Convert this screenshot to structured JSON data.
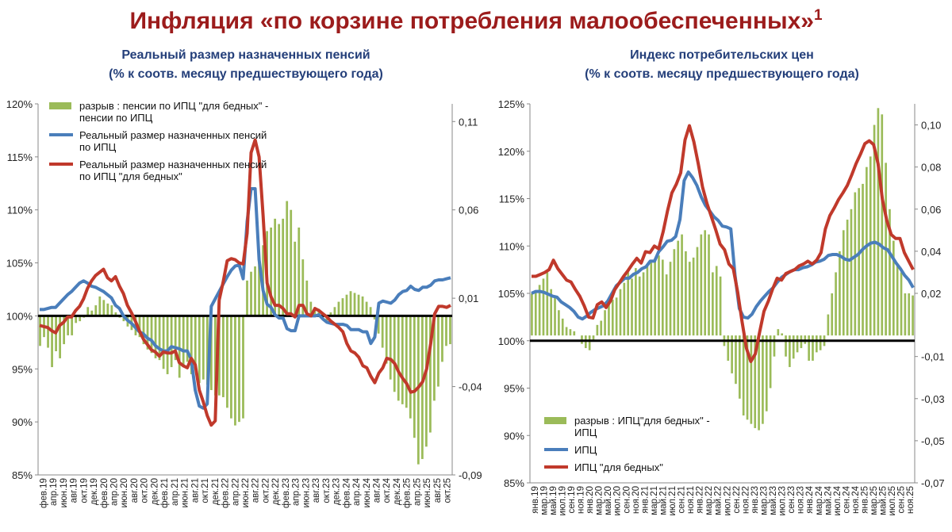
{
  "page": {
    "title": "Инфляция «по корзине потребления малообеспеченных»",
    "title_sup": "1"
  },
  "colors": {
    "gap": "#9bbb59",
    "cpi": "#4a7ebb",
    "poor": "#c0392b",
    "title": "#9c1c1c",
    "subtitle": "#243f7a"
  },
  "chart_data": [
    {
      "type": "bar+line",
      "title": "Реальный размер назначенных пенсий",
      "subtitle": "(% к соотв. месяцу предшествующего года)",
      "y_left_ticks": [
        "85%",
        "90%",
        "95%",
        "100%",
        "105%",
        "110%",
        "115%",
        "120%"
      ],
      "y_left_range": [
        85,
        120
      ],
      "y_right_ticks": [
        "-0,09",
        "-0,04",
        "0,01",
        "0,06",
        "0,11"
      ],
      "y_right_range": [
        -0.09,
        0.12
      ],
      "baseline": 100,
      "x_labels": [
        "фев.19",
        "апр.19",
        "июн.19",
        "авг.19",
        "окт.19",
        "дек.19",
        "фев.20",
        "апр.20",
        "июн.20",
        "авг.20",
        "окт.20",
        "дек.20",
        "фев.21",
        "апр.21",
        "июн.21",
        "авг.21",
        "окт.21",
        "дек.21",
        "фев.22",
        "апр.22",
        "июн.22",
        "авг.22",
        "окт.22",
        "дек.22",
        "фев.23",
        "апр.23",
        "июн.23",
        "авг.23",
        "окт.23",
        "дек.23",
        "фев.24",
        "апр.24",
        "июн.24",
        "авг.24",
        "окт.24",
        "дек.24",
        "фев.25",
        "апр.25",
        "июн.25",
        "авг.25",
        "окт.25"
      ],
      "legend": [
        {
          "name": "разрыв : пенсии по ИПЦ \"для бедных\" -",
          "name2": "пенсии по ИПЦ"
        },
        {
          "name": "Реальный размер назначенных пенсий",
          "name2": "по ИПЦ"
        },
        {
          "name": "Реальный размер назначенных пенсий",
          "name2": "по ИПЦ \"для бедных\""
        }
      ],
      "bars": [
        -0.017,
        -0.012,
        -0.018,
        -0.029,
        -0.02,
        -0.024,
        -0.016,
        -0.011,
        -0.011,
        -0.004,
        -0.003,
        -0.001,
        0.005,
        0.003,
        0.006,
        0.011,
        0.009,
        0.007,
        0.006,
        0.002,
        -0.001,
        -0.003,
        -0.006,
        -0.008,
        -0.011,
        -0.012,
        -0.016,
        -0.019,
        -0.021,
        -0.024,
        -0.025,
        -0.03,
        -0.033,
        -0.029,
        -0.025,
        -0.035,
        -0.028,
        -0.026,
        -0.033,
        -0.03,
        -0.038,
        -0.036,
        -0.039,
        -0.042,
        -0.045,
        -0.045,
        -0.046,
        -0.052,
        -0.058,
        -0.062,
        -0.06,
        -0.058,
        0.02,
        0.025,
        0.028,
        0.035,
        0.04,
        0.048,
        0.05,
        0.055,
        0.052,
        0.055,
        0.065,
        0.06,
        0.042,
        0.05,
        0.032,
        0.02,
        0.008,
        0.005,
        0.004,
        -0.001,
        -0.003,
        0.002,
        0.005,
        0.008,
        0.01,
        0.012,
        0.014,
        0.013,
        0.012,
        0.011,
        0.008,
        0.005,
        -0.002,
        -0.01,
        -0.018,
        -0.027,
        -0.036,
        -0.043,
        -0.048,
        -0.05,
        -0.052,
        -0.058,
        -0.069,
        -0.084,
        -0.081,
        -0.074,
        -0.066,
        -0.048,
        -0.04,
        -0.026,
        -0.017,
        -0.016
      ],
      "series_cpi": [
        100.6,
        100.6,
        100.7,
        100.8,
        100.8,
        101.2,
        101.6,
        102.0,
        102.3,
        102.7,
        103.1,
        103.3,
        103.1,
        102.8,
        102.7,
        102.5,
        102.3,
        102.0,
        101.7,
        101.0,
        100.7,
        100.0,
        99.6,
        99.3,
        98.9,
        98.5,
        98.3,
        97.9,
        97.7,
        97.2,
        96.9,
        96.7,
        96.7,
        97.1,
        97.0,
        96.9,
        96.7,
        96.7,
        95.9,
        93.0,
        91.5,
        91.3,
        91.7,
        100.9,
        101.6,
        102.3,
        103.0,
        103.7,
        104.3,
        104.7,
        104.8,
        103.5,
        108.9,
        112.0,
        112.0,
        105.3,
        102.4,
        101.1,
        100.8,
        100.1,
        99.8,
        99.8,
        98.8,
        98.6,
        98.6,
        100.0,
        100.0,
        100.0,
        100.0,
        100.0,
        100.1,
        99.7,
        99.4,
        99.3,
        99.2,
        99.2,
        99.2,
        99.1,
        98.7,
        98.7,
        98.7,
        98.5,
        98.5,
        97.4,
        98.0,
        101.2,
        101.4,
        101.3,
        101.2,
        101.5,
        102.0,
        102.3,
        102.4,
        102.8,
        102.5,
        102.4,
        102.7,
        102.7,
        102.9,
        103.3,
        103.4,
        103.4,
        103.5,
        103.6
      ],
      "series_poor": [
        99.1,
        99.0,
        98.9,
        98.6,
        98.4,
        99.1,
        99.4,
        99.9,
        99.9,
        100.5,
        100.9,
        101.6,
        102.6,
        103.3,
        103.8,
        104.1,
        104.4,
        103.6,
        103.3,
        103.7,
        102.8,
        102.1,
        101.0,
        100.3,
        99.5,
        98.6,
        97.8,
        97.3,
        96.8,
        96.6,
        96.2,
        96.6,
        96.5,
        96.5,
        96.7,
        95.6,
        95.3,
        95.1,
        96.0,
        95.4,
        93.0,
        91.9,
        90.6,
        89.7,
        90.1,
        101.5,
        103.2,
        105.2,
        105.4,
        105.3,
        105.0,
        104.9,
        107.8,
        115.4,
        116.6,
        115.0,
        109.5,
        103.1,
        101.8,
        101.0,
        101.0,
        100.7,
        100.2,
        100.2,
        99.9,
        101.0,
        101.0,
        100.2,
        100.0,
        100.7,
        100.5,
        100.2,
        99.9,
        99.5,
        99.2,
        98.9,
        98.5,
        97.4,
        96.7,
        96.5,
        96.1,
        95.3,
        95.1,
        94.3,
        93.7,
        94.6,
        95.1,
        96.0,
        95.9,
        95.5,
        94.7,
        94.1,
        93.6,
        92.8,
        92.9,
        93.3,
        93.8,
        95.0,
        97.4,
        100.2,
        100.9,
        100.9,
        100.8,
        101.0
      ]
    },
    {
      "type": "bar+line",
      "title": "Индекс потребительских цен",
      "subtitle": "(% к соотв. месяцу предшествующего года)",
      "y_left_ticks": [
        "85%",
        "90%",
        "95%",
        "100%",
        "105%",
        "110%",
        "115%",
        "120%",
        "125%"
      ],
      "y_left_range": [
        85,
        125
      ],
      "y_right_ticks": [
        "-0,07",
        "-0,05",
        "-0,03",
        "-0,01",
        "0,02",
        "0,04",
        "0,06",
        "0,08",
        "0,10"
      ],
      "y_right_range": [
        -0.07,
        0.11
      ],
      "baseline": 100,
      "x_labels": [
        "янв.19",
        "мар.19",
        "май.19",
        "июл.19",
        "сен.19",
        "ноя.19",
        "янв.20",
        "мар.20",
        "май.20",
        "июл.20",
        "сен.20",
        "ноя.20",
        "янв.21",
        "мар.21",
        "май.21",
        "июл.21",
        "сен.21",
        "ноя.21",
        "янв.22",
        "мар.22",
        "май.22",
        "июл.22",
        "сен.22",
        "ноя.22",
        "янв.23",
        "мар.23",
        "май.23",
        "июл.23",
        "сен.23",
        "ноя.23",
        "янв.24",
        "мар.24",
        "май.24",
        "июл.24",
        "сен.24",
        "ноя.24",
        "янв.25",
        "мар.25",
        "май.25",
        "июл.25",
        "сен.25",
        "ноя.25"
      ],
      "legend": [
        {
          "name": "разрыв : ИПЦ\"для бедных\" -",
          "name2": "ИПЦ"
        },
        {
          "name": "ИПЦ",
          "name2": ""
        },
        {
          "name": "ИПЦ \"для бедных\"",
          "name2": ""
        }
      ],
      "bars": [
        0.02,
        0.021,
        0.024,
        0.027,
        0.03,
        0.022,
        0.018,
        0.012,
        0.008,
        0.004,
        0.003,
        0.002,
        0.0,
        -0.004,
        -0.006,
        -0.007,
        -0.002,
        0.005,
        0.007,
        0.012,
        0.015,
        0.017,
        0.018,
        0.022,
        0.025,
        0.03,
        0.027,
        0.032,
        0.028,
        0.03,
        0.034,
        0.035,
        0.036,
        0.038,
        0.036,
        0.029,
        0.035,
        0.041,
        0.045,
        0.048,
        0.04,
        0.035,
        0.037,
        0.042,
        0.048,
        0.05,
        0.048,
        0.03,
        0.033,
        0.028,
        -0.005,
        -0.012,
        -0.018,
        -0.023,
        -0.03,
        -0.038,
        -0.04,
        -0.042,
        -0.044,
        -0.045,
        -0.042,
        -0.036,
        -0.025,
        -0.01,
        0.003,
        0.001,
        -0.01,
        -0.015,
        -0.011,
        -0.008,
        -0.006,
        -0.004,
        -0.012,
        -0.012,
        -0.008,
        -0.007,
        -0.005,
        0.01,
        0.02,
        0.03,
        0.04,
        0.05,
        0.055,
        0.06,
        0.068,
        0.07,
        0.072,
        0.08,
        0.085,
        0.1,
        0.108,
        0.105,
        0.082,
        0.06,
        0.045,
        0.033,
        0.03,
        0.02,
        0.02,
        0.019
      ],
      "series_cpi": [
        105.0,
        105.2,
        105.2,
        105.1,
        104.9,
        104.7,
        104.6,
        104.1,
        103.8,
        103.5,
        103.1,
        102.5,
        102.3,
        102.6,
        103.0,
        103.3,
        103.5,
        103.7,
        104.2,
        105.0,
        105.8,
        106.2,
        106.6,
        106.6,
        107.0,
        107.2,
        107.6,
        107.8,
        108.4,
        108.4,
        109.4,
        109.9,
        110.5,
        110.6,
        111.0,
        112.8,
        116.9,
        117.8,
        117.2,
        116.4,
        115.2,
        114.3,
        113.7,
        113.1,
        112.7,
        112.1,
        112.0,
        111.8,
        106.9,
        103.4,
        102.5,
        102.4,
        102.8,
        103.6,
        104.2,
        104.7,
        105.2,
        105.6,
        106.2,
        106.7,
        107.0,
        107.3,
        107.5,
        107.5,
        107.7,
        107.8,
        108.0,
        108.3,
        108.4,
        108.6,
        109.0,
        109.1,
        109.1,
        108.9,
        108.6,
        108.5,
        108.8,
        109.1,
        109.6,
        110.0,
        110.3,
        110.4,
        110.2,
        109.8,
        109.6,
        108.9,
        108.2,
        107.6,
        106.9,
        106.4,
        105.6
      ],
      "series_poor": [
        106.8,
        106.8,
        107.0,
        107.2,
        107.5,
        108.5,
        107.6,
        107.0,
        106.4,
        106.2,
        105.4,
        104.7,
        103.7,
        102.5,
        102.4,
        103.8,
        104.1,
        103.5,
        104.2,
        105.4,
        106.1,
        106.8,
        107.4,
        108.1,
        108.7,
        108.2,
        109.4,
        109.3,
        110.0,
        109.7,
        111.5,
        113.7,
        115.6,
        116.5,
        117.7,
        121.2,
        122.7,
        121.0,
        118.7,
        116.2,
        114.5,
        113.1,
        111.7,
        110.2,
        109.6,
        108.1,
        107.6,
        105.1,
        102.0,
        99.2,
        97.8,
        98.6,
        100.9,
        103.1,
        104.2,
        105.5,
        106.6,
        106.4,
        107.1,
        107.3,
        107.5,
        107.9,
        108.1,
        108.4,
        108.1,
        108.5,
        109.3,
        111.8,
        113.2,
        114.0,
        114.9,
        115.6,
        116.4,
        117.5,
        118.7,
        119.7,
        120.8,
        121.1,
        120.7,
        118.7,
        114.9,
        112.7,
        111.2,
        110.8,
        110.8,
        109.3,
        108.4,
        107.5
      ]
    }
  ]
}
